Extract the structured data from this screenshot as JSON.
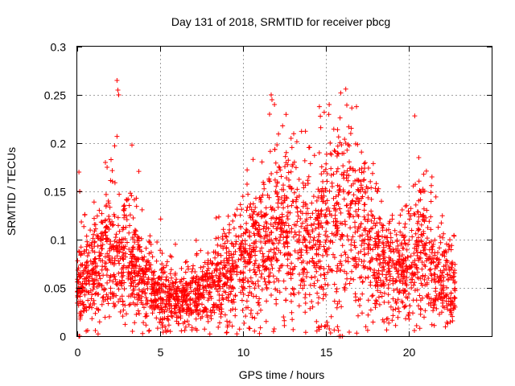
{
  "chart_data": {
    "type": "scatter",
    "title": "Day 131 of 2018, SRMTID for receiver pbcg",
    "xlabel": "GPS time / hours",
    "ylabel": "SRMTID / TECUs",
    "xlim": [
      0,
      25
    ],
    "ylim": [
      0,
      0.3
    ],
    "xticks": [
      0,
      5,
      10,
      15,
      20
    ],
    "yticks": [
      0,
      0.05,
      0.1,
      0.15,
      0.2,
      0.25,
      0.3
    ],
    "xtick_labels": [
      "0",
      "5",
      "10",
      "15",
      "20"
    ],
    "ytick_labels": [
      "0",
      "0.05",
      "0.1",
      "0.15",
      "0.2",
      "0.25",
      "0.3"
    ],
    "grid": true,
    "marker": "+",
    "color": "#ff0000",
    "profile": [
      [
        0.0,
        0.045
      ],
      [
        0.5,
        0.06
      ],
      [
        1.0,
        0.065
      ],
      [
        1.5,
        0.08
      ],
      [
        2.0,
        0.09
      ],
      [
        2.5,
        0.085
      ],
      [
        3.0,
        0.075
      ],
      [
        3.5,
        0.07
      ],
      [
        4.0,
        0.06
      ],
      [
        4.5,
        0.05
      ],
      [
        5.0,
        0.045
      ],
      [
        5.5,
        0.04
      ],
      [
        6.0,
        0.035
      ],
      [
        6.5,
        0.035
      ],
      [
        7.0,
        0.04
      ],
      [
        7.5,
        0.045
      ],
      [
        8.0,
        0.05
      ],
      [
        8.5,
        0.055
      ],
      [
        9.0,
        0.06
      ],
      [
        9.5,
        0.065
      ],
      [
        10.0,
        0.075
      ],
      [
        10.5,
        0.085
      ],
      [
        11.0,
        0.095
      ],
      [
        11.5,
        0.1
      ],
      [
        12.0,
        0.105
      ],
      [
        12.5,
        0.105
      ],
      [
        13.0,
        0.11
      ],
      [
        13.5,
        0.1
      ],
      [
        14.0,
        0.095
      ],
      [
        14.5,
        0.1
      ],
      [
        15.0,
        0.11
      ],
      [
        15.5,
        0.115
      ],
      [
        16.0,
        0.12
      ],
      [
        16.5,
        0.125
      ],
      [
        17.0,
        0.12
      ],
      [
        17.5,
        0.1
      ],
      [
        18.0,
        0.085
      ],
      [
        18.5,
        0.075
      ],
      [
        19.0,
        0.07
      ],
      [
        19.5,
        0.065
      ],
      [
        20.0,
        0.075
      ],
      [
        20.5,
        0.09
      ],
      [
        21.0,
        0.085
      ],
      [
        21.5,
        0.07
      ],
      [
        22.0,
        0.06
      ],
      [
        22.5,
        0.05
      ],
      [
        22.8,
        0.045
      ]
    ],
    "outliers": [
      [
        2.4,
        0.265
      ],
      [
        2.45,
        0.255
      ],
      [
        2.5,
        0.25
      ],
      [
        2.4,
        0.207
      ],
      [
        11.7,
        0.25
      ],
      [
        11.75,
        0.245
      ],
      [
        11.9,
        0.24
      ],
      [
        11.6,
        0.23
      ],
      [
        15.9,
        0.252
      ],
      [
        16.2,
        0.256
      ],
      [
        15.2,
        0.24
      ],
      [
        14.9,
        0.232
      ],
      [
        16.5,
        0.21
      ],
      [
        16.2,
        0.2
      ],
      [
        3.3,
        0.198
      ],
      [
        1.7,
        0.18
      ],
      [
        1.8,
        0.175
      ],
      [
        20.6,
        0.185
      ],
      [
        21.4,
        0.165
      ],
      [
        14.6,
        0.19
      ],
      [
        12.9,
        0.205
      ],
      [
        0.1,
        0.17
      ],
      [
        0.15,
        0.15
      ],
      [
        15.8,
        0.0
      ],
      [
        15.9,
        0.0
      ],
      [
        16.0,
        0.0
      ],
      [
        0.1,
        0.0
      ],
      [
        0.15,
        0.0
      ]
    ],
    "series_extent": [
      0.0,
      22.8
    ],
    "point_count": 3000
  }
}
